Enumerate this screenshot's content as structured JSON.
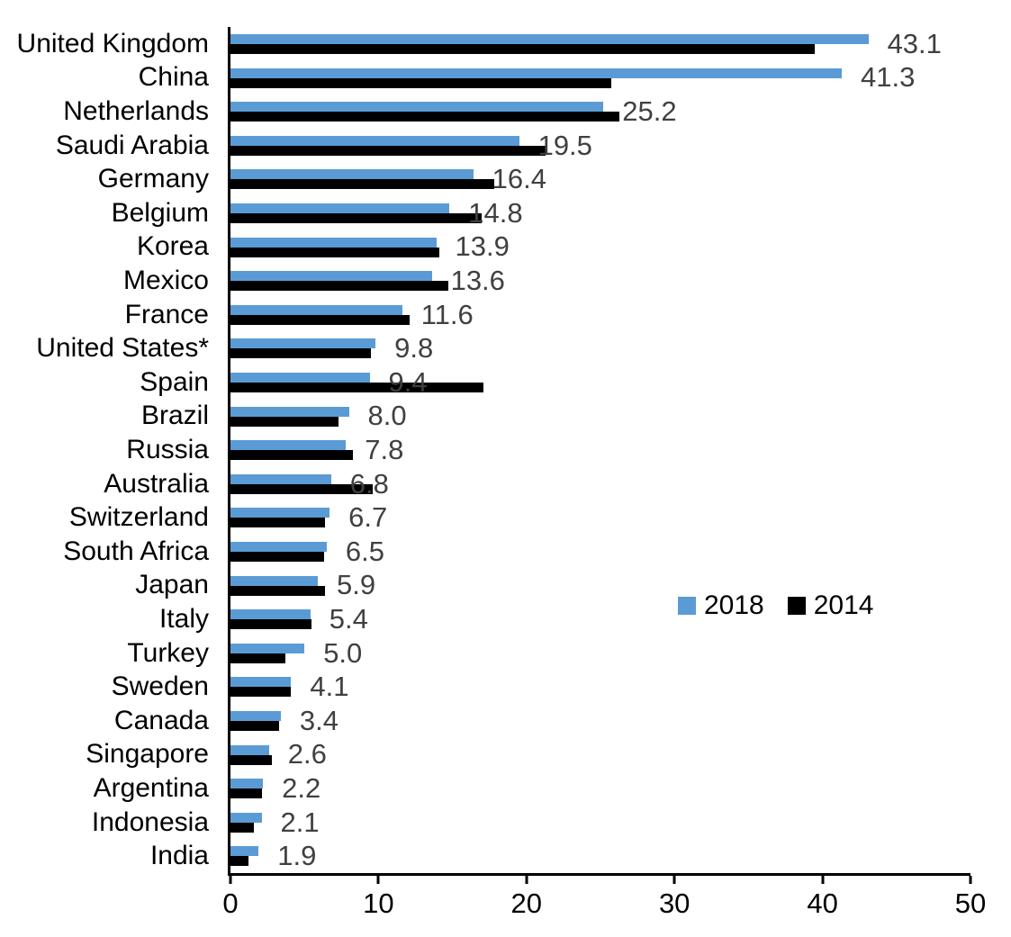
{
  "chart_data": {
    "type": "bar",
    "orientation": "horizontal",
    "title": "",
    "xlabel": "",
    "ylabel": "",
    "xlim": [
      0,
      50
    ],
    "x_ticks": [
      "0",
      "10",
      "20",
      "30",
      "40",
      "50"
    ],
    "grid": false,
    "legend_position": "middle-right",
    "categories": [
      "United Kingdom",
      "China",
      "Netherlands",
      "Saudi Arabia",
      "Germany",
      "Belgium",
      "Korea",
      "Mexico",
      "France",
      "United States*",
      "Spain",
      "Brazil",
      "Russia",
      "Australia",
      "Switzerland",
      "South Africa",
      "Japan",
      "Italy",
      "Turkey",
      "Sweden",
      "Canada",
      "Singapore",
      "Argentina",
      "Indonesia",
      "India"
    ],
    "series": [
      {
        "name": "2018",
        "color": "#5B9BD5",
        "values": [
          43.1,
          41.3,
          25.2,
          19.5,
          16.4,
          14.8,
          13.9,
          13.6,
          11.6,
          9.8,
          9.4,
          8.0,
          7.8,
          6.8,
          6.7,
          6.5,
          5.9,
          5.4,
          5.0,
          4.1,
          3.4,
          2.6,
          2.2,
          2.1,
          1.9
        ]
      },
      {
        "name": "2014",
        "color": "#000000",
        "values": [
          39.5,
          25.7,
          26.3,
          21.3,
          17.8,
          17.0,
          14.1,
          14.7,
          12.1,
          9.5,
          17.1,
          7.3,
          8.3,
          9.6,
          6.4,
          6.3,
          6.4,
          5.5,
          3.7,
          4.1,
          3.3,
          2.8,
          2.1,
          1.6,
          1.2
        ]
      }
    ],
    "data_labels": [
      "43.1",
      "41.3",
      "25.2",
      "19.5",
      "16.4",
      "14.8",
      "13.9",
      "13.6",
      "11.6",
      "9.8",
      "9.4",
      "8.0",
      "7.8",
      "6.8",
      "6.7",
      "6.5",
      "5.9",
      "5.4",
      "5.0",
      "4.1",
      "3.4",
      "2.6",
      "2.2",
      "2.1",
      "1.9"
    ],
    "data_labels_series": "2018"
  },
  "colors": {
    "bar_2018": "#5B9BD5",
    "bar_2014": "#000000",
    "value_label": "#404040",
    "axis": "#000000",
    "background": "#FFFFFF"
  }
}
